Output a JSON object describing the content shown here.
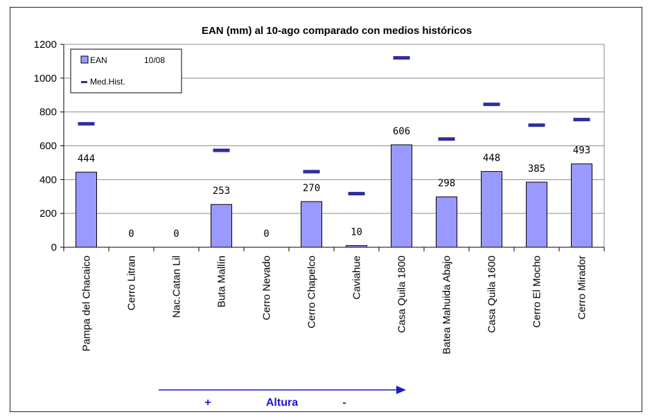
{
  "chart_data": {
    "type": "bar",
    "title": "EAN (mm) al 10-ago comparado con medios históricos",
    "categories": [
      "Pampa del Chacaico",
      "Cerro Litran",
      "Nac.Catan Lil",
      "Buta Mallín",
      "Cerro Nevado",
      "Cerro Chapelco",
      "Caviahue",
      "Casa Quila 1800",
      "Batea Mahuida Abajo",
      "Casa Quila 1600",
      "Cerro El Mocho",
      "Cerro Mirador"
    ],
    "series": [
      {
        "name": "EAN",
        "name_suffix": "10/08",
        "kind": "bar",
        "color": "#9999ff",
        "values": [
          444,
          0,
          0,
          253,
          0,
          270,
          10,
          606,
          298,
          448,
          385,
          493
        ],
        "labels": [
          "444",
          "0",
          "0",
          "253",
          "0",
          "270",
          "10",
          "606",
          "298",
          "448",
          "385",
          "493"
        ]
      },
      {
        "name": "Med.Hist.",
        "kind": "dash",
        "color": "#2e2e9a",
        "values": [
          730,
          null,
          null,
          573,
          null,
          447,
          317,
          1120,
          640,
          845,
          722,
          755
        ]
      }
    ],
    "ylim": [
      0,
      1200
    ],
    "yticks": [
      "0",
      "200",
      "400",
      "600",
      "800",
      "1000",
      "1200"
    ],
    "grid": true,
    "legend_position": "top-left",
    "annotation": {
      "plus": "+",
      "label": "Altura",
      "minus": "-",
      "color": "#1a1acc"
    }
  }
}
